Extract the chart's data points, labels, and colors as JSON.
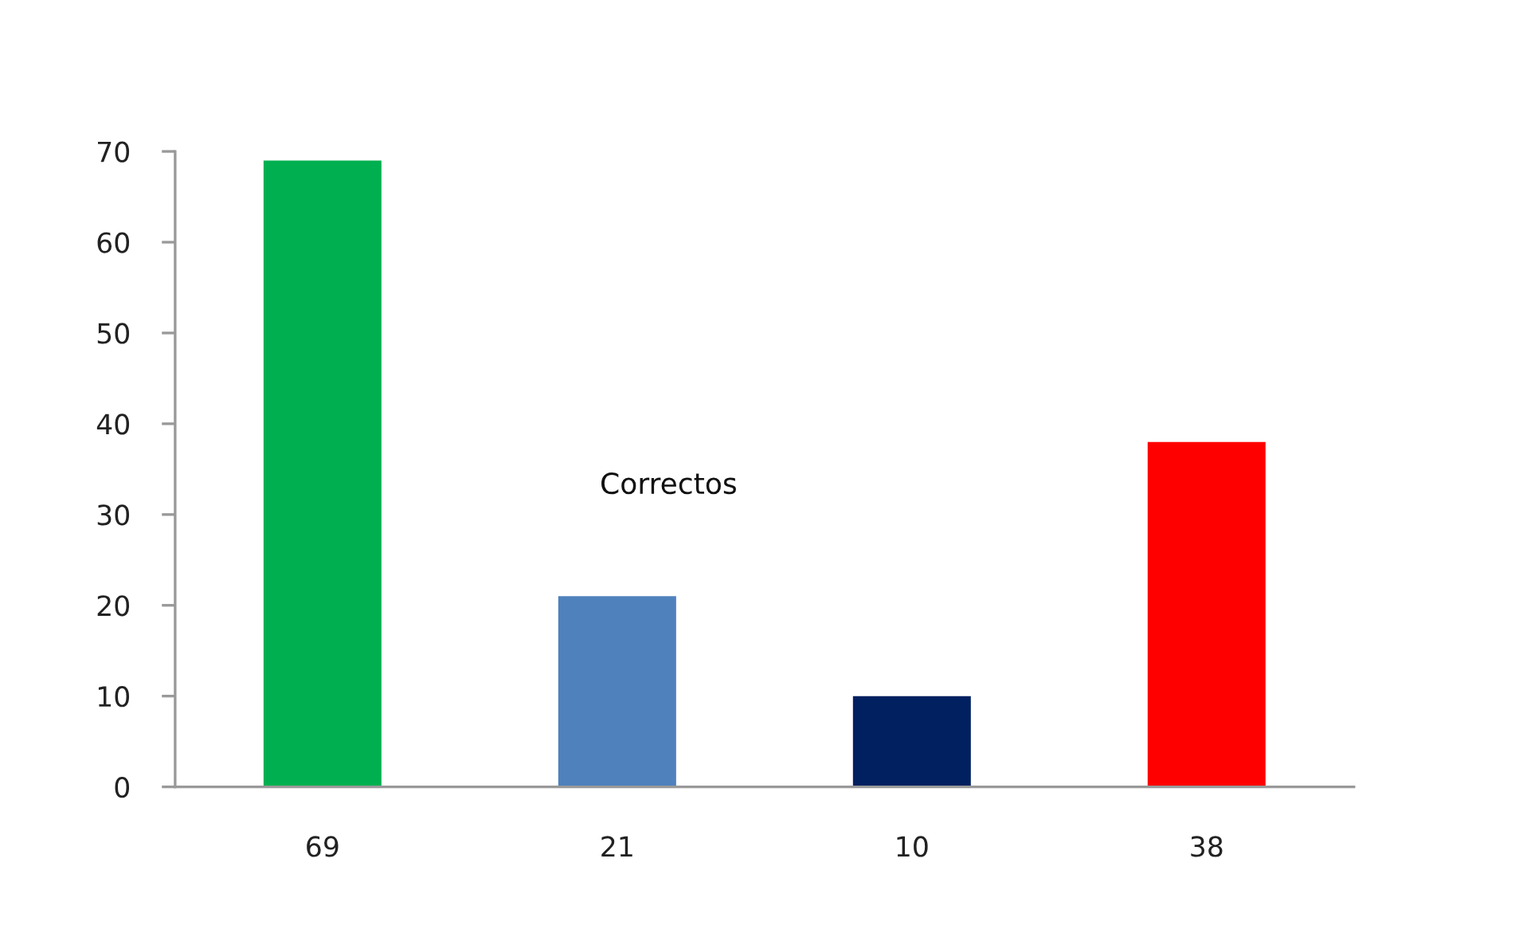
{
  "chart_data": {
    "type": "bar",
    "categories": [
      "69",
      "21",
      "10",
      "38"
    ],
    "values": [
      69,
      21,
      10,
      38
    ],
    "colors": [
      "#00b050",
      "#4f81bd",
      "#002060",
      "#ff0000"
    ],
    "ylim": [
      0,
      70
    ],
    "yticks": [
      0,
      10,
      20,
      30,
      40,
      50,
      60,
      70
    ],
    "grid": false,
    "annotations": [
      "Correctos"
    ]
  }
}
